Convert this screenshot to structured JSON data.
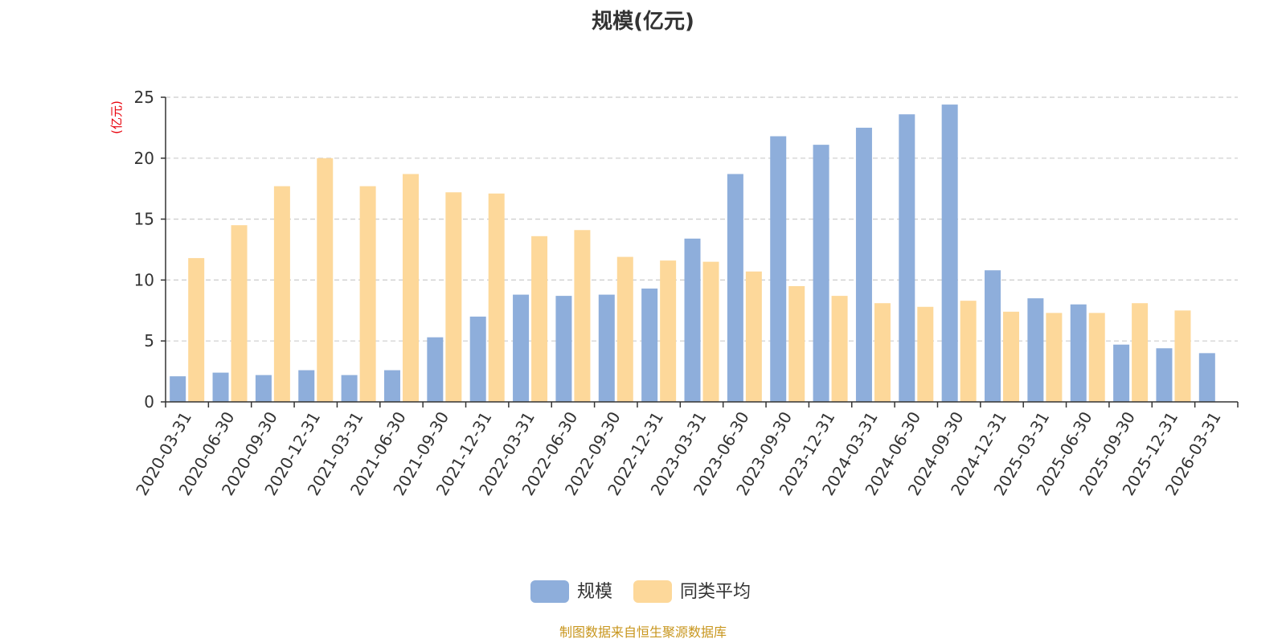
{
  "chart_data": {
    "type": "bar",
    "title": "规模(亿元)",
    "ylabel": "(亿元)",
    "xlabel": "",
    "ylim": [
      0,
      25
    ],
    "yticks": [
      0,
      5,
      10,
      15,
      20,
      25
    ],
    "grid": true,
    "legend_position": "bottom-center",
    "categories": [
      "2020-03-31",
      "2020-06-30",
      "2020-09-30",
      "2020-12-31",
      "2021-03-31",
      "2021-06-30",
      "2021-09-30",
      "2021-12-31",
      "2022-03-31",
      "2022-06-30",
      "2022-09-30",
      "2022-12-31",
      "2023-03-31",
      "2023-06-30",
      "2023-09-30",
      "2023-12-31",
      "2024-03-31",
      "2024-06-30",
      "2024-09-30",
      "2024-12-31",
      "2025-03-31",
      "2025-06-30",
      "2025-09-30",
      "2025-12-31",
      "2026-03-31"
    ],
    "series": [
      {
        "name": "规模",
        "color": "#8eaedb",
        "values": [
          2.1,
          2.4,
          2.2,
          2.6,
          2.2,
          2.6,
          5.3,
          7.0,
          8.8,
          8.7,
          8.8,
          9.3,
          13.4,
          18.7,
          21.8,
          21.1,
          22.5,
          23.6,
          24.4,
          10.8,
          8.5,
          8.0,
          4.7,
          4.4,
          4.0
        ]
      },
      {
        "name": "同类平均",
        "color": "#fdd89a",
        "values": [
          11.8,
          14.5,
          17.7,
          20.0,
          17.7,
          18.7,
          17.2,
          17.1,
          13.6,
          14.1,
          11.9,
          11.6,
          11.5,
          10.7,
          9.5,
          8.7,
          8.1,
          7.8,
          8.3,
          7.4,
          7.3,
          7.3,
          8.1,
          7.5,
          null
        ]
      }
    ]
  },
  "source_text": "制图数据来自恒生聚源数据库",
  "colors": {
    "axis": "#333333",
    "grid": "#cccccc",
    "ylabel": "#e8000b",
    "source": "#c8961e"
  }
}
